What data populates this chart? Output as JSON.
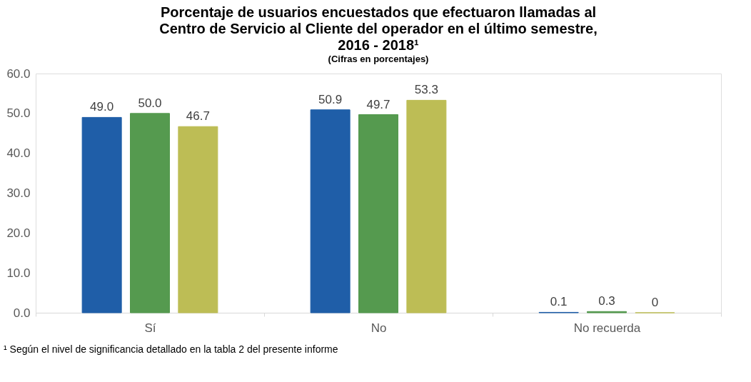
{
  "chart_data": {
    "type": "bar",
    "title": "Porcentaje de usuarios encuestados que efectuaron llamadas al Centro de Servicio al Cliente del operador en el último semestre, 2016 - 2018¹",
    "subtitle": "(Cifras en porcentajes)",
    "categories": [
      "Sí",
      "No",
      "No recuerda"
    ],
    "series": [
      {
        "color": "#1f5ea8",
        "values": [
          49.0,
          50.9,
          0.1
        ],
        "value_labels": [
          "49.0",
          "50.9",
          "0.1"
        ]
      },
      {
        "color": "#559a4f",
        "values": [
          50.0,
          49.7,
          0.3
        ],
        "value_labels": [
          "50.0",
          "49.7",
          "0.3"
        ]
      },
      {
        "color": "#bdbd55",
        "values": [
          46.7,
          53.3,
          0
        ],
        "value_labels": [
          "46.7",
          "53.3",
          "0"
        ]
      }
    ],
    "ylim": [
      0,
      60
    ],
    "yticks": [
      {
        "value": 0,
        "label": "0.0"
      },
      {
        "value": 10,
        "label": "10.0"
      },
      {
        "value": 20,
        "label": "20.0"
      },
      {
        "value": 30,
        "label": "30.0"
      },
      {
        "value": 40,
        "label": "40.0"
      },
      {
        "value": 50,
        "label": "50.0"
      },
      {
        "value": 60,
        "label": "60.0"
      }
    ],
    "grid": false,
    "legend": false,
    "annotations": [
      "¹ Según el nivel de significancia detallado en la tabla 2 del presente informe"
    ]
  }
}
